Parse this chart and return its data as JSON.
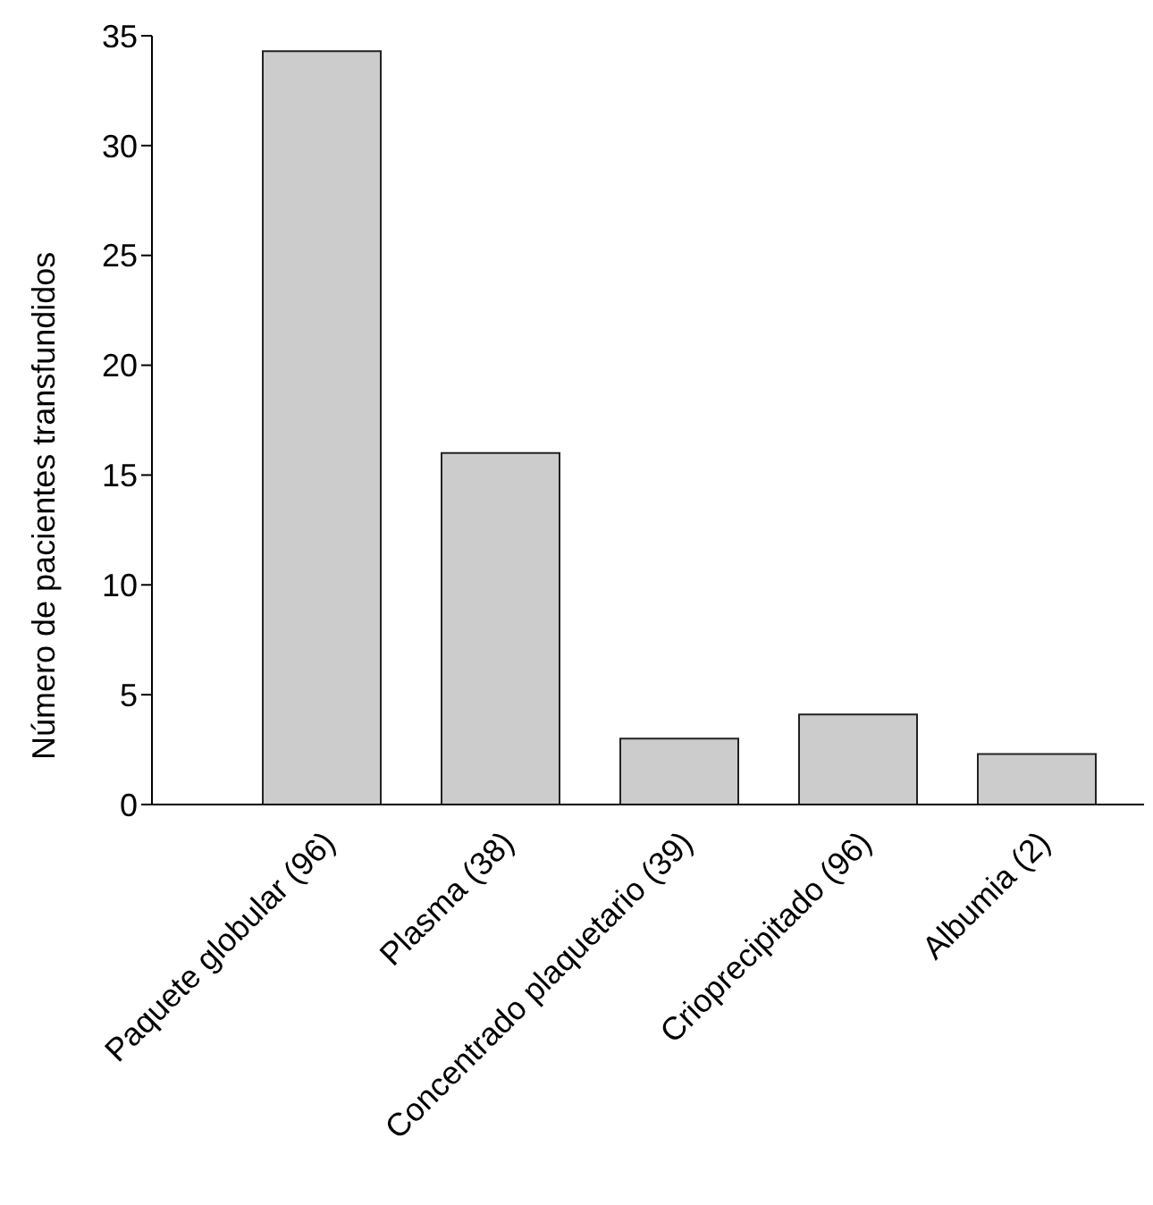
{
  "chart_data": {
    "type": "bar",
    "ylabel": "Número de pacientes transfundidos",
    "categories": [
      "Paquete globular (96)",
      "Plasma (38)",
      "Concentrado plaquetario (39)",
      "Crioprecipitado (96)",
      "Albumia (2)"
    ],
    "values": [
      34.3,
      16,
      3,
      4.1,
      2.3
    ],
    "color": "#cccccc",
    "ylim": [
      0,
      35
    ],
    "yticks": [
      0,
      5,
      10,
      15,
      20,
      25,
      30,
      35
    ],
    "grid": false,
    "legend": false
  }
}
